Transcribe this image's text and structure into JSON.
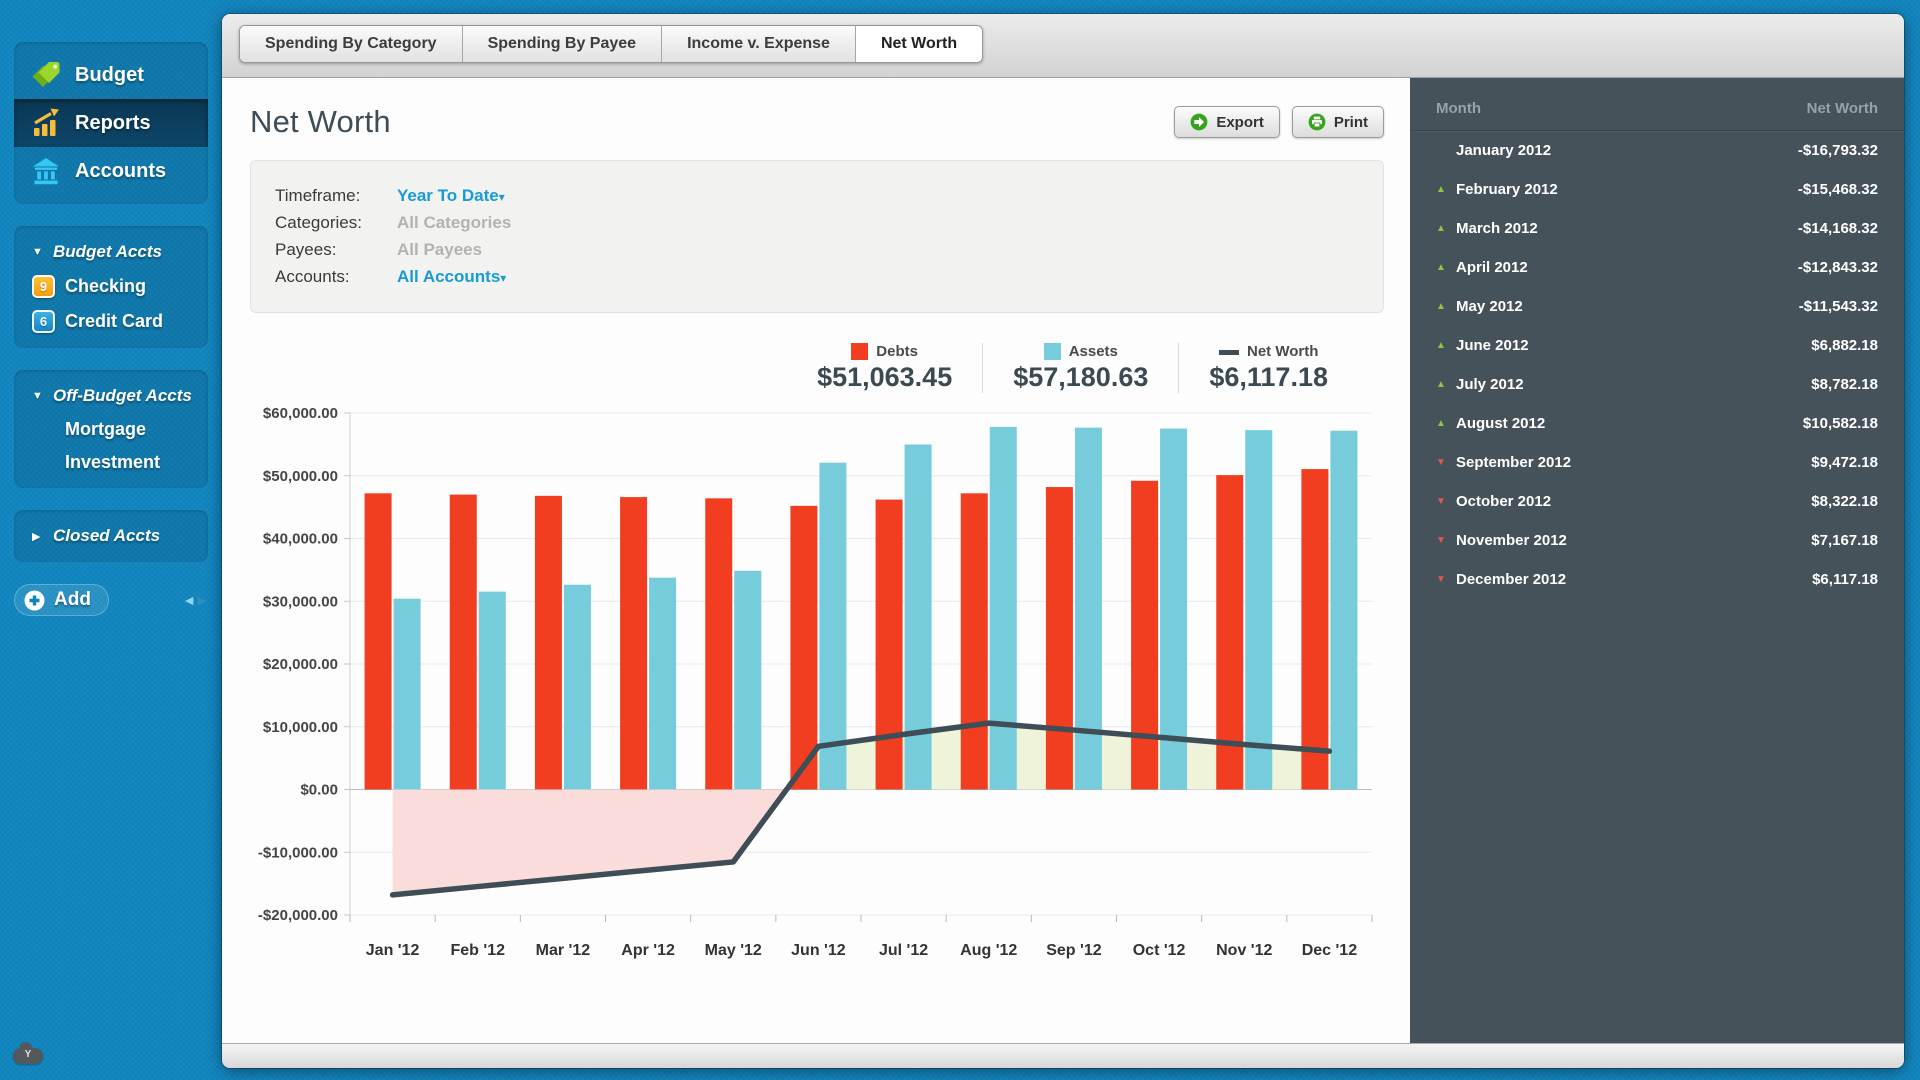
{
  "sidebar": {
    "nav": [
      {
        "label": "Budget"
      },
      {
        "label": "Reports",
        "active": true
      },
      {
        "label": "Accounts"
      }
    ],
    "sections": [
      {
        "header": "Budget Accts",
        "collapsed": false,
        "items": [
          {
            "label": "Checking",
            "badge": "9",
            "badge_color": "orange"
          },
          {
            "label": "Credit Card",
            "badge": "6",
            "badge_color": "blue"
          }
        ]
      },
      {
        "header": "Off-Budget Accts",
        "collapsed": false,
        "items": [
          {
            "label": "Mortgage"
          },
          {
            "label": "Investment"
          }
        ]
      },
      {
        "header": "Closed Accts",
        "collapsed": true,
        "items": []
      }
    ],
    "add_label": "Add",
    "cloud_label": "Y"
  },
  "tabs": [
    {
      "label": "Spending By Category",
      "active": false
    },
    {
      "label": "Spending By Payee",
      "active": false
    },
    {
      "label": "Income v. Expense",
      "active": false
    },
    {
      "label": "Net Worth",
      "active": true
    }
  ],
  "report": {
    "title": "Net Worth",
    "export_label": "Export",
    "print_label": "Print",
    "filters": [
      {
        "label": "Timeframe:",
        "value": "Year To Date",
        "type": "dropdown"
      },
      {
        "label": "Categories:",
        "value": "All Categories",
        "type": "disabled"
      },
      {
        "label": "Payees:",
        "value": "All Payees",
        "type": "disabled"
      },
      {
        "label": "Accounts:",
        "value": "All Accounts",
        "type": "dropdown"
      }
    ],
    "legend": [
      {
        "label": "Debts",
        "value": "$51,063.45",
        "color": "#f23e20",
        "swatch": "square"
      },
      {
        "label": "Assets",
        "value": "$57,180.63",
        "color": "#76ccdb",
        "swatch": "square"
      },
      {
        "label": "Net Worth",
        "value": "$6,117.18",
        "color": "#3e4d56",
        "swatch": "dash"
      }
    ]
  },
  "chart_data": {
    "type": "bar+line",
    "categories": [
      "Jan '12",
      "Feb '12",
      "Mar '12",
      "Apr '12",
      "May '12",
      "Jun '12",
      "Jul '12",
      "Aug '12",
      "Sep '12",
      "Oct '12",
      "Nov '12",
      "Dec '12"
    ],
    "series": [
      {
        "name": "Debts",
        "type": "bar",
        "color": "#f23e20",
        "values": [
          47200,
          47000,
          46800,
          46600,
          46400,
          45200,
          46200,
          47200,
          48200,
          49200,
          50100,
          51063
        ]
      },
      {
        "name": "Assets",
        "type": "bar",
        "color": "#76ccdb",
        "values": [
          30407,
          31532,
          32632,
          33757,
          34857,
          52082,
          54982,
          57782,
          57672,
          57522,
          57267,
          57181
        ]
      },
      {
        "name": "Net Worth",
        "type": "line",
        "color": "#3e4d56",
        "values": [
          -16793.32,
          -15468.32,
          -14168.32,
          -12843.32,
          -11543.32,
          6882.18,
          8782.18,
          10582.18,
          9472.18,
          8322.18,
          7167.18,
          6117.18
        ]
      }
    ],
    "ylim": [
      -20000,
      60000
    ],
    "ytick_step": 10000,
    "ytick_labels": [
      "$60,000.00",
      "$50,000.00",
      "$40,000.00",
      "$30,000.00",
      "$20,000.00",
      "$10,000.00",
      "$0.00",
      "-$10,000.00",
      "-$20,000.00"
    ],
    "area_fill_positive": "#eef3da",
    "area_fill_negative": "#fadcdb",
    "grid": true,
    "legend_position": "top-right"
  },
  "table": {
    "columns": [
      "Month",
      "Net Worth"
    ],
    "rows": [
      {
        "month": "January 2012",
        "value": "-$16,793.32",
        "trend": "none"
      },
      {
        "month": "February 2012",
        "value": "-$15,468.32",
        "trend": "up"
      },
      {
        "month": "March 2012",
        "value": "-$14,168.32",
        "trend": "up"
      },
      {
        "month": "April 2012",
        "value": "-$12,843.32",
        "trend": "up"
      },
      {
        "month": "May 2012",
        "value": "-$11,543.32",
        "trend": "up"
      },
      {
        "month": "June 2012",
        "value": "$6,882.18",
        "trend": "up"
      },
      {
        "month": "July 2012",
        "value": "$8,782.18",
        "trend": "up"
      },
      {
        "month": "August 2012",
        "value": "$10,582.18",
        "trend": "up"
      },
      {
        "month": "September 2012",
        "value": "$9,472.18",
        "trend": "down"
      },
      {
        "month": "October 2012",
        "value": "$8,322.18",
        "trend": "down"
      },
      {
        "month": "November 2012",
        "value": "$7,167.18",
        "trend": "down"
      },
      {
        "month": "December 2012",
        "value": "$6,117.18",
        "trend": "down"
      }
    ]
  }
}
